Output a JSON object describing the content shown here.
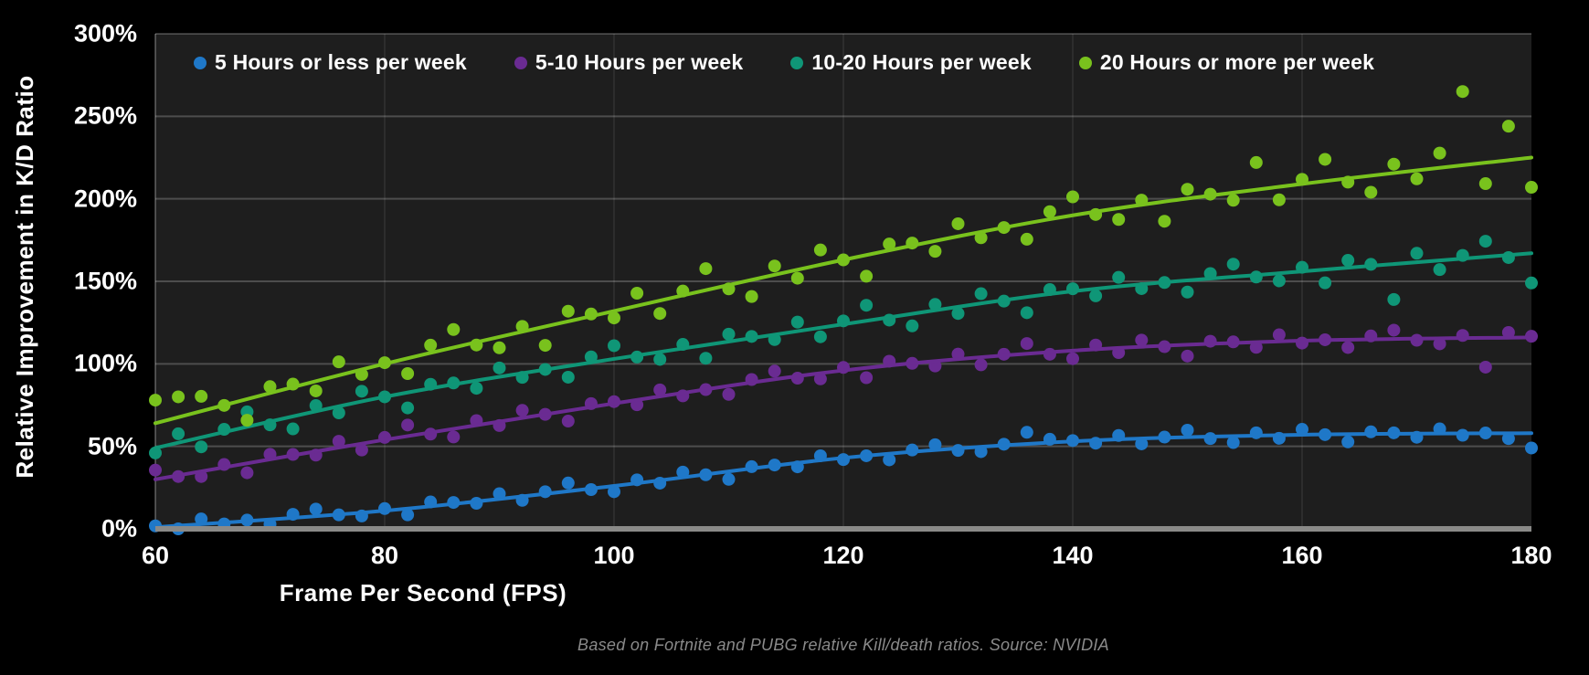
{
  "page": {
    "background": "#000000",
    "plot_background": "#1e1e1e"
  },
  "footnote": "Based on Fortnite and PUBG relative Kill/death ratios. Source: NVIDIA",
  "chart_data": {
    "type": "scatter",
    "title": "",
    "xlabel": "Frame Per Second (FPS)",
    "ylabel": "Relative Improvement in K/D Ratio",
    "xlim": [
      60,
      180
    ],
    "ylim_percent": [
      0,
      300
    ],
    "x_ticks": [
      60,
      80,
      100,
      120,
      140,
      160,
      180
    ],
    "y_ticks": [
      "0%",
      "50%",
      "100%",
      "150%",
      "200%",
      "250%",
      "300%"
    ],
    "y_tick_values": [
      0,
      50,
      100,
      150,
      200,
      250,
      300
    ],
    "grid": true,
    "legend_position": "top-left-inside",
    "axis_color": "#8a8a88",
    "x_start": 60,
    "x_step": 2,
    "trend_x": [
      60,
      80,
      100,
      120,
      140,
      160,
      180
    ],
    "series": [
      {
        "name": "5 Hours or less per week",
        "color": "#1f78c8",
        "trend": [
          1,
          11,
          26,
          43,
          53,
          57,
          58
        ],
        "values": [
          1.8,
          0,
          6,
          3,
          5.3,
          2.8,
          8.8,
          12,
          8.5,
          7.8,
          12.3,
          8.5,
          16.3,
          16,
          15.5,
          21.3,
          17.3,
          22.5,
          27.8,
          23.8,
          22.5,
          29.7,
          27.7,
          34.4,
          32.8,
          30,
          37.7,
          38.7,
          37.6,
          44.3,
          42,
          44.3,
          41.8,
          47.8,
          51,
          47.5,
          46.8,
          51.3,
          58.5,
          54.3,
          53.5,
          51.9,
          56.6,
          51.5,
          55.6,
          59.8,
          54.7,
          52.3,
          58.2,
          54.9,
          60.3,
          57.1,
          52.7,
          58.8,
          58.2,
          55.5,
          60.6,
          56.7,
          58.1,
          54.7,
          49
        ]
      },
      {
        "name": "5-10 Hours per week",
        "color": "#6a2b92",
        "trend": [
          30,
          54,
          76,
          96,
          108,
          114,
          116
        ],
        "values": [
          35.6,
          31.7,
          31.7,
          39,
          34,
          45.2,
          45.1,
          44.7,
          53.1,
          47.8,
          55.4,
          62.9,
          57.4,
          55.7,
          65.6,
          62.6,
          71.8,
          69.4,
          65.3,
          75.9,
          77.1,
          75.2,
          84.2,
          80.6,
          84.4,
          81.5,
          90.5,
          95.6,
          91.3,
          90.9,
          97.8,
          91.6,
          101.6,
          100.3,
          98.7,
          105.9,
          99.4,
          105.8,
          112.3,
          105.8,
          103.1,
          111.4,
          106.8,
          114.4,
          110.4,
          104.7,
          113.7,
          113.3,
          110,
          117.6,
          112.6,
          114.6,
          109.9,
          116.9,
          120.4,
          114.3,
          112.1,
          117.2,
          98,
          119,
          116.7
        ]
      },
      {
        "name": "10-20 Hours per week",
        "color": "#0f9677",
        "trend": [
          49,
          80,
          103,
          124,
          144,
          156,
          167
        ],
        "values": [
          46,
          57.6,
          49.7,
          60.3,
          70.9,
          63,
          60.6,
          74.7,
          70.3,
          83.4,
          80,
          73.3,
          87.6,
          88.4,
          85.2,
          97.5,
          91.8,
          96.6,
          91.9,
          104.2,
          111,
          104.1,
          102.7,
          111.8,
          103.4,
          118,
          116.6,
          114.7,
          125.3,
          116.4,
          126,
          135.5,
          126.5,
          123,
          136,
          130.5,
          142.5,
          138,
          131,
          145,
          145.5,
          141.2,
          152.4,
          145.6,
          149.3,
          143.5,
          154.7,
          160.4,
          152.6,
          150.3,
          158.5,
          149.1,
          162.7,
          160.3,
          139,
          167,
          157.1,
          165.7,
          174.3,
          164.4,
          149
        ]
      },
      {
        "name": "20 Hours or more per week",
        "color": "#79c21d",
        "trend": [
          64,
          100,
          132,
          163,
          190,
          209,
          225
        ],
        "values": [
          78,
          80,
          80.3,
          74.8,
          65.8,
          86.2,
          87.7,
          83.6,
          101.2,
          93.6,
          100.7,
          94.1,
          111.3,
          120.8,
          111.4,
          109.7,
          122.7,
          111.2,
          131.9,
          130.2,
          127.8,
          142.8,
          130.5,
          144.1,
          157.7,
          145.4,
          140.8,
          159.3,
          151.9,
          169,
          163,
          153.1,
          172.6,
          173.2,
          168.2,
          184.9,
          176.4,
          182.6,
          175.5,
          192.2,
          201.2,
          190.5,
          187.5,
          199.2,
          186.4,
          205.8,
          202.8,
          199.1,
          222,
          199.4,
          211.8,
          223.9,
          210.1,
          204,
          221,
          212.1,
          227.7,
          265,
          209.2,
          244,
          207
        ]
      }
    ]
  }
}
